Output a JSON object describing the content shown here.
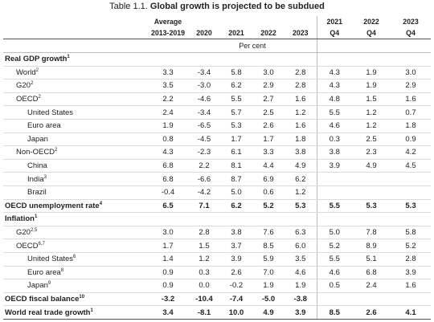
{
  "title": {
    "prefix": "Table 1.1.",
    "text": "Global growth is projected to be subdued"
  },
  "header": {
    "col1_line1": "Average",
    "col1_line2": "2013-2019",
    "col2": "2020",
    "col3": "2021",
    "col4": "2022",
    "col5": "2023",
    "col6_line1": "2021",
    "col6_line2": "Q4",
    "col7_line1": "2022",
    "col7_line2": "Q4",
    "col8_line1": "2023",
    "col8_line2": "Q4"
  },
  "unit": "Per cent",
  "rows": [
    {
      "label": "Real GDP growth",
      "sup": "1",
      "values": [
        "",
        "",
        "",
        "",
        "",
        "",
        "",
        ""
      ]
    },
    {
      "label": "World",
      "sup": "2",
      "values": [
        "3.3",
        "-3.4",
        "5.8",
        "3.0",
        "2.8",
        "4.3",
        "1.9",
        "3.0"
      ]
    },
    {
      "label": "G20",
      "sup": "2",
      "values": [
        "3.5",
        "-3.0",
        "6.2",
        "2.9",
        "2.8",
        "4.3",
        "1.9",
        "2.9"
      ]
    },
    {
      "label": "OECD",
      "sup": "2",
      "values": [
        "2.2",
        "-4.6",
        "5.5",
        "2.7",
        "1.6",
        "4.8",
        "1.5",
        "1.6"
      ]
    },
    {
      "label": "United States",
      "sup": "",
      "values": [
        "2.4",
        "-3.4",
        "5.7",
        "2.5",
        "1.2",
        "5.5",
        "1.2",
        "0.7"
      ]
    },
    {
      "label": "Euro area",
      "sup": "",
      "values": [
        "1.9",
        "-6.5",
        "5.3",
        "2.6",
        "1.6",
        "4.6",
        "1.2",
        "1.8"
      ]
    },
    {
      "label": "Japan",
      "sup": "",
      "values": [
        "0.8",
        "-4.5",
        "1.7",
        "1.7",
        "1.8",
        "0.3",
        "2.5",
        "0.9"
      ]
    },
    {
      "label": "Non-OECD",
      "sup": "2",
      "values": [
        "4.3",
        "-2.3",
        "6.1",
        "3.3",
        "3.8",
        "3.8",
        "2.3",
        "4.2"
      ]
    },
    {
      "label": "China",
      "sup": "",
      "values": [
        "6.8",
        "2.2",
        "8.1",
        "4.4",
        "4.9",
        "3.9",
        "4.9",
        "4.5"
      ]
    },
    {
      "label": "India",
      "sup": "3",
      "values": [
        "6.8",
        "-6.6",
        "8.7",
        "6.9",
        "6.2",
        "",
        "",
        ""
      ]
    },
    {
      "label": "Brazil",
      "sup": "",
      "values": [
        "-0.4",
        "-4.2",
        "5.0",
        "0.6",
        "1.2",
        "",
        "",
        ""
      ]
    },
    {
      "label": "OECD unemployment rate",
      "sup": "4",
      "values": [
        "6.5",
        "7.1",
        "6.2",
        "5.2",
        "5.3",
        "5.5",
        "5.3",
        "5.3"
      ]
    },
    {
      "label": "Inflation",
      "sup": "1",
      "values": [
        "",
        "",
        "",
        "",
        "",
        "",
        "",
        ""
      ]
    },
    {
      "label": "G20",
      "sup": "2,5",
      "values": [
        "3.0",
        "2.8",
        "3.8",
        "7.6",
        "6.3",
        "5.0",
        "7.8",
        "5.8"
      ]
    },
    {
      "label": "OECD",
      "sup": "6,7",
      "values": [
        "1.7",
        "1.5",
        "3.7",
        "8.5",
        "6.0",
        "5.2",
        "8.9",
        "5.2"
      ]
    },
    {
      "label": "United States",
      "sup": "6",
      "values": [
        "1.4",
        "1.2",
        "3.9",
        "5.9",
        "3.5",
        "5.5",
        "5.1",
        "2.8"
      ]
    },
    {
      "label": "Euro area",
      "sup": "8",
      "values": [
        "0.9",
        "0.3",
        "2.6",
        "7.0",
        "4.6",
        "4.6",
        "6.8",
        "3.9"
      ]
    },
    {
      "label": "Japan",
      "sup": "9",
      "values": [
        "0.9",
        "0.0",
        "-0.2",
        "1.9",
        "1.9",
        "0.5",
        "2.4",
        "1.6"
      ]
    },
    {
      "label": "OECD fiscal balance",
      "sup": "10",
      "values": [
        "-3.2",
        "-10.4",
        "-7.4",
        "-5.0",
        "-3.8",
        "",
        "",
        ""
      ]
    },
    {
      "label": "World real trade growth",
      "sup": "1",
      "values": [
        "3.4",
        "-8.1",
        "10.0",
        "4.9",
        "3.9",
        "8.5",
        "2.6",
        "4.1"
      ]
    }
  ]
}
